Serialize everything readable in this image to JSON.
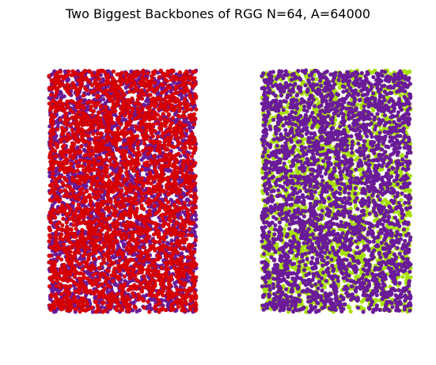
{
  "figure": {
    "title": "Two Biggest Backbones of RGG N=64, A=64000"
  },
  "chart_data": [
    {
      "type": "scatter",
      "title": "",
      "xlabel": "",
      "ylabel": "",
      "axes_visible": false,
      "grid": false,
      "series": [
        {
          "color": "#6a1b9a",
          "point_count": 3000
        },
        {
          "color": "#d50000",
          "point_count": 3000
        }
      ]
    },
    {
      "type": "scatter",
      "title": "",
      "xlabel": "",
      "ylabel": "",
      "axes_visible": false,
      "grid": false,
      "series": [
        {
          "color": "#a6e000",
          "point_count": 3000
        },
        {
          "color": "#6a1b9a",
          "point_count": 3000
        }
      ]
    }
  ]
}
